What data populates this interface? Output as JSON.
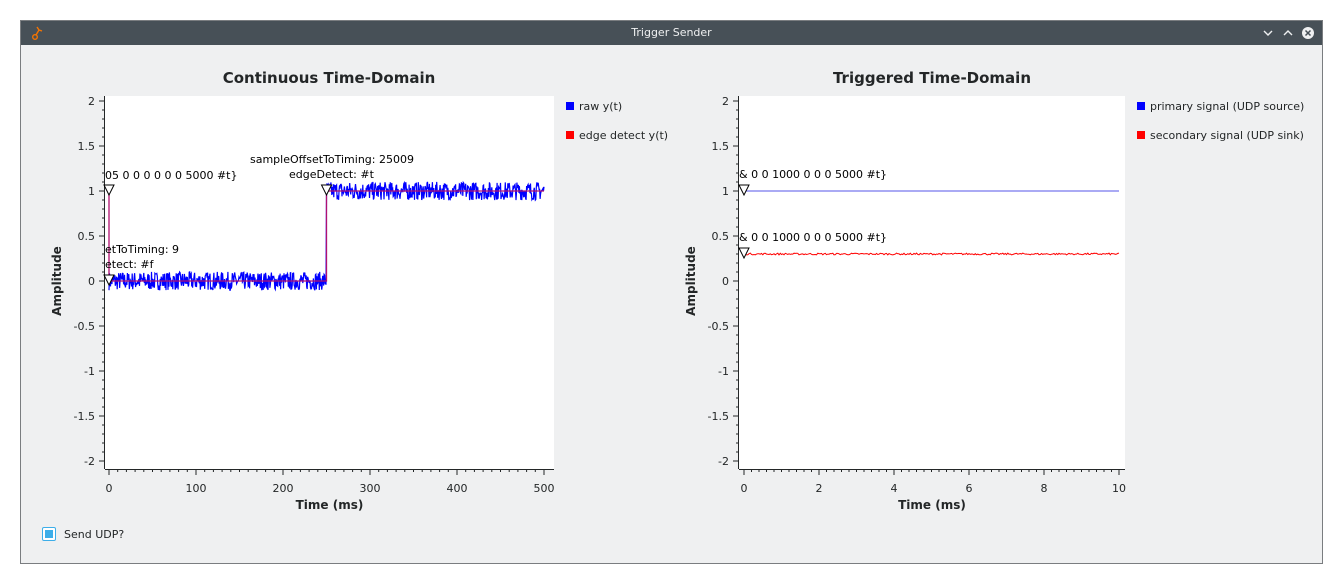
{
  "window": {
    "title": "Trigger Sender"
  },
  "colors": {
    "raw": "#0000ff",
    "edge": "#ff0000",
    "primary": "#7777ee",
    "secondary": "#ff0000"
  },
  "charts": [
    {
      "type": "line",
      "title": "Continuous Time-Domain",
      "xlabel": "Time (ms)",
      "ylabel": "Amplitude",
      "xlim": [
        0,
        500
      ],
      "ylim": [
        -2,
        2
      ],
      "xticks": [
        "0",
        "100",
        "200",
        "300",
        "400",
        "500"
      ],
      "yticks": [
        "2",
        "1.5",
        "1",
        "0.5",
        "0",
        "-0.5",
        "-1",
        "-1.5",
        "-2"
      ],
      "legend": [
        {
          "label": "raw y(t)",
          "color": "#0000ff"
        },
        {
          "label": "edge detect y(t)",
          "color": "#ff0000"
        }
      ],
      "annotations": [
        {
          "text": "05 0 0 0 0 0 0 5000 #t}"
        },
        {
          "text": "sampleOffsetToTiming: 25009"
        },
        {
          "text": "edgeDetect: #t"
        },
        {
          "text": "etToTiming: 9"
        },
        {
          "text": "etect: #f"
        }
      ]
    },
    {
      "type": "line",
      "title": "Triggered Time-Domain",
      "xlabel": "Time (ms)",
      "ylabel": "Amplitude",
      "xlim": [
        0,
        10
      ],
      "ylim": [
        -2,
        2
      ],
      "xticks": [
        "0",
        "2",
        "4",
        "6",
        "8",
        "10"
      ],
      "yticks": [
        "2",
        "1.5",
        "1",
        "0.5",
        "0",
        "-0.5",
        "-1",
        "-1.5",
        "-2"
      ],
      "legend": [
        {
          "label": "primary signal (UDP source)",
          "color": "#0000ff"
        },
        {
          "label": "secondary signal (UDP sink)",
          "color": "#ff0000"
        }
      ],
      "annotations": [
        {
          "text": "& 0 0 1000 0 0 0 5000 #t}"
        },
        {
          "text": "& 0 0 1000 0 0 0 5000 #t}"
        }
      ]
    }
  ],
  "chart_data": [
    {
      "type": "line",
      "title": "Continuous Time-Domain",
      "xlabel": "Time (ms)",
      "ylabel": "Amplitude",
      "xlim": [
        0,
        500
      ],
      "ylim": [
        -2,
        2
      ],
      "series": [
        {
          "name": "raw y(t)",
          "x": [
            0,
            250,
            250,
            500
          ],
          "y": [
            0,
            0,
            1,
            1
          ],
          "noise": 0.06
        },
        {
          "name": "edge detect y(t)",
          "x": [
            0,
            0,
            0,
            250,
            250,
            500
          ],
          "y": [
            1,
            1,
            0,
            0,
            1,
            1
          ]
        }
      ]
    },
    {
      "type": "line",
      "title": "Triggered Time-Domain",
      "xlabel": "Time (ms)",
      "ylabel": "Amplitude",
      "xlim": [
        0,
        10
      ],
      "ylim": [
        -2,
        2
      ],
      "series": [
        {
          "name": "primary signal (UDP source)",
          "x": [
            0,
            10
          ],
          "y": [
            1,
            1
          ]
        },
        {
          "name": "secondary signal (UDP sink)",
          "x": [
            0,
            10
          ],
          "y": [
            0.3,
            0.3
          ],
          "noise": 0.01
        }
      ]
    }
  ],
  "controls": {
    "send_udp_label": "Send UDP?",
    "send_udp_checked": true
  }
}
